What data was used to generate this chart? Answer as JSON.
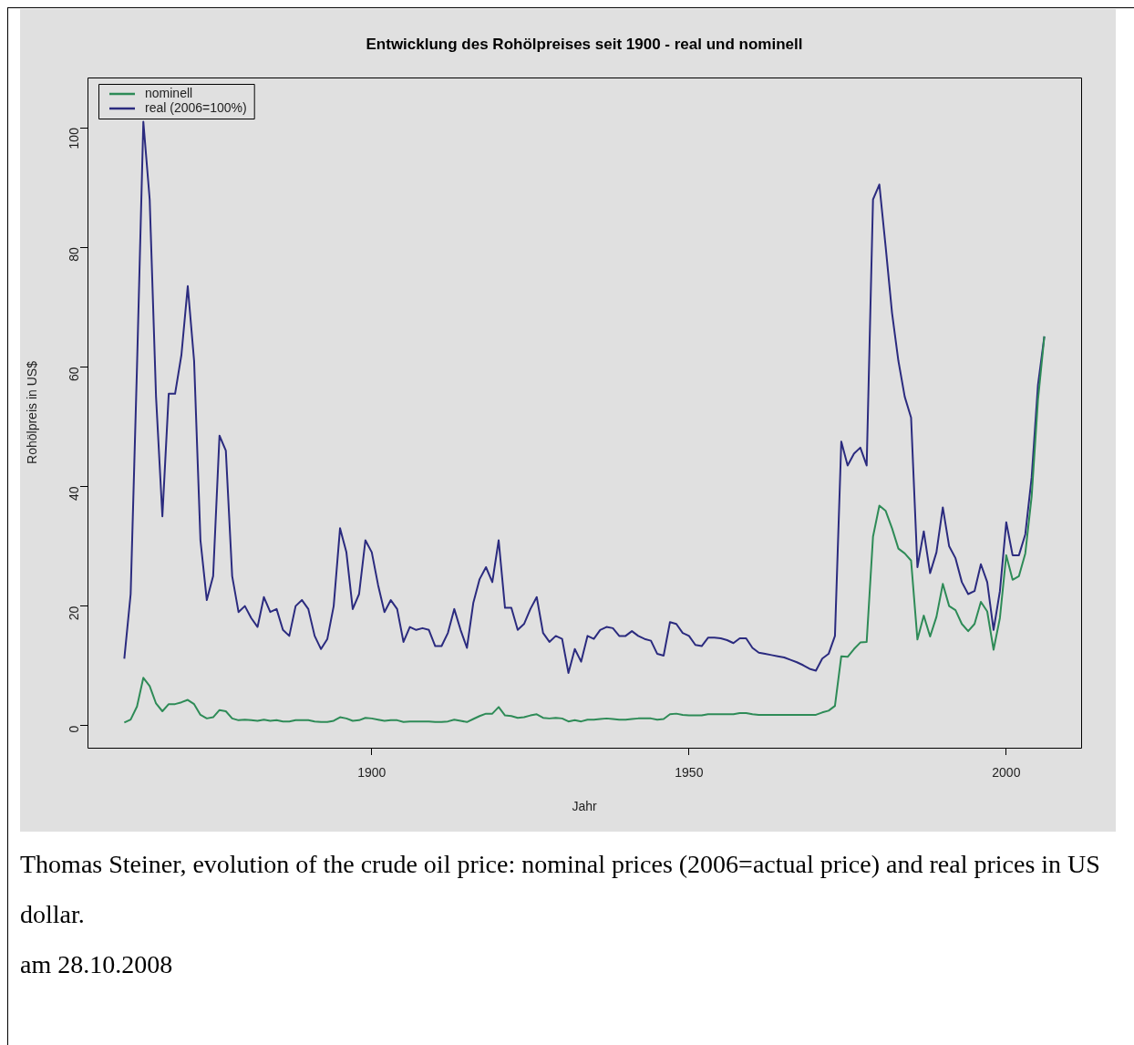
{
  "chart_data": {
    "type": "line",
    "title": "Entwicklung des Rohölpreises seit 1900 - real und nominell",
    "xlabel": "Jahr",
    "ylabel": "Rohölpreis in US$",
    "x": [
      1861,
      1862,
      1863,
      1864,
      1865,
      1866,
      1867,
      1868,
      1869,
      1870,
      1871,
      1872,
      1873,
      1874,
      1875,
      1876,
      1877,
      1878,
      1879,
      1880,
      1881,
      1882,
      1883,
      1884,
      1885,
      1886,
      1887,
      1888,
      1889,
      1890,
      1891,
      1892,
      1893,
      1894,
      1895,
      1896,
      1897,
      1898,
      1899,
      1900,
      1901,
      1902,
      1903,
      1904,
      1905,
      1906,
      1907,
      1908,
      1909,
      1910,
      1911,
      1912,
      1913,
      1914,
      1915,
      1916,
      1917,
      1918,
      1919,
      1920,
      1921,
      1922,
      1923,
      1924,
      1925,
      1926,
      1927,
      1928,
      1929,
      1930,
      1931,
      1932,
      1933,
      1934,
      1935,
      1936,
      1937,
      1938,
      1939,
      1940,
      1941,
      1942,
      1943,
      1944,
      1945,
      1946,
      1947,
      1948,
      1949,
      1950,
      1951,
      1952,
      1953,
      1954,
      1955,
      1956,
      1957,
      1958,
      1959,
      1960,
      1961,
      1962,
      1963,
      1964,
      1965,
      1966,
      1967,
      1968,
      1969,
      1970,
      1971,
      1972,
      1973,
      1974,
      1975,
      1976,
      1977,
      1978,
      1979,
      1980,
      1981,
      1982,
      1983,
      1984,
      1985,
      1986,
      1987,
      1988,
      1989,
      1990,
      1991,
      1992,
      1993,
      1994,
      1995,
      1996,
      1997,
      1998,
      1999,
      2000,
      2001,
      2002,
      2003,
      2004,
      2005,
      2006
    ],
    "series": [
      {
        "name": "nominell",
        "color": "#2e8b57",
        "values": [
          0.5,
          1,
          3.2,
          8,
          6.6,
          3.7,
          2.4,
          3.6,
          3.6,
          3.9,
          4.3,
          3.6,
          1.8,
          1.2,
          1.4,
          2.6,
          2.4,
          1.2,
          0.9,
          1,
          0.9,
          0.8,
          1,
          0.8,
          0.9,
          0.7,
          0.7,
          0.9,
          0.9,
          0.9,
          0.7,
          0.6,
          0.6,
          0.8,
          1.4,
          1.2,
          0.8,
          0.9,
          1.3,
          1.2,
          1,
          0.8,
          0.9,
          0.9,
          0.6,
          0.7,
          0.7,
          0.7,
          0.7,
          0.6,
          0.6,
          0.7,
          1,
          0.8,
          0.6,
          1.1,
          1.6,
          2,
          2,
          3.1,
          1.7,
          1.6,
          1.3,
          1.4,
          1.7,
          1.9,
          1.3,
          1.2,
          1.3,
          1.2,
          0.7,
          0.9,
          0.7,
          1,
          1,
          1.1,
          1.2,
          1.1,
          1,
          1,
          1.1,
          1.2,
          1.2,
          1.2,
          1,
          1.1,
          1.9,
          2,
          1.8,
          1.7,
          1.7,
          1.7,
          1.9,
          1.9,
          1.9,
          1.9,
          1.9,
          2.1,
          2.1,
          1.9,
          1.8,
          1.8,
          1.8,
          1.8,
          1.8,
          1.8,
          1.8,
          1.8,
          1.8,
          1.8,
          2.2,
          2.5,
          3.3,
          11.6,
          11.5,
          12.8,
          13.9,
          14,
          31.6,
          36.8,
          35.9,
          33,
          29.6,
          28.8,
          27.6,
          14.4,
          18.4,
          14.9,
          18.2,
          23.7,
          20,
          19.3,
          17,
          15.8,
          17,
          20.7,
          19.1,
          12.7,
          18,
          28.5,
          24.4,
          25,
          28.8,
          38.3,
          54.5,
          65.1
        ]
      },
      {
        "name": "real (2006=100%)",
        "color": "#2b2b7f",
        "values": [
          11.2,
          22,
          60,
          101,
          88,
          55,
          35,
          55.5,
          55.5,
          62,
          73.5,
          61,
          31,
          21,
          25,
          48.5,
          46,
          25,
          19,
          20,
          18,
          16.5,
          21.5,
          19,
          19.5,
          16,
          15,
          20,
          21,
          19.5,
          15,
          12.8,
          14.5,
          20,
          33,
          29,
          19.5,
          22,
          31,
          29,
          23.5,
          19,
          21,
          19.5,
          14,
          16.5,
          16,
          16.3,
          16,
          13.3,
          13.3,
          15.5,
          19.5,
          16,
          13,
          20.5,
          24.5,
          26.5,
          24,
          31,
          19.7,
          19.7,
          16,
          17,
          19.5,
          21.5,
          15.5,
          14,
          15,
          14.5,
          8.8,
          12.8,
          10.7,
          15,
          14.5,
          16,
          16.5,
          16.3,
          15,
          15,
          15.8,
          15,
          14.5,
          14.2,
          12,
          11.7,
          17.3,
          17,
          15.5,
          15,
          13.5,
          13.3,
          14.7,
          14.7,
          14.6,
          14.3,
          13.8,
          14.6,
          14.6,
          13,
          12.2,
          12,
          11.8,
          11.6,
          11.4,
          11,
          10.6,
          10.1,
          9.5,
          9.2,
          11.2,
          12,
          15,
          47.5,
          43.5,
          45.5,
          46.5,
          43.5,
          88,
          90.5,
          80,
          69,
          61,
          55,
          51.5,
          26.5,
          32.5,
          25.5,
          29,
          36.5,
          30,
          28,
          24,
          22,
          22.5,
          27,
          24,
          16,
          22.5,
          34,
          28.5,
          28.5,
          32,
          41.5,
          57,
          65.1
        ]
      }
    ],
    "xlim": [
      1855.2,
      2011.8
    ],
    "xticks": [
      1900,
      1950,
      2000
    ],
    "ylim": [
      -3.7,
      108.4
    ],
    "yticks": [
      0,
      20,
      40,
      60,
      80,
      100
    ],
    "legend": "top left",
    "marker": "none",
    "line_style": "solid",
    "annotations": [
      "Thomas Steiner, evolution of the crude oil price: nominal prices (2006=actual price) and real prices in US dollar.",
      "am 28.10.2008"
    ]
  }
}
